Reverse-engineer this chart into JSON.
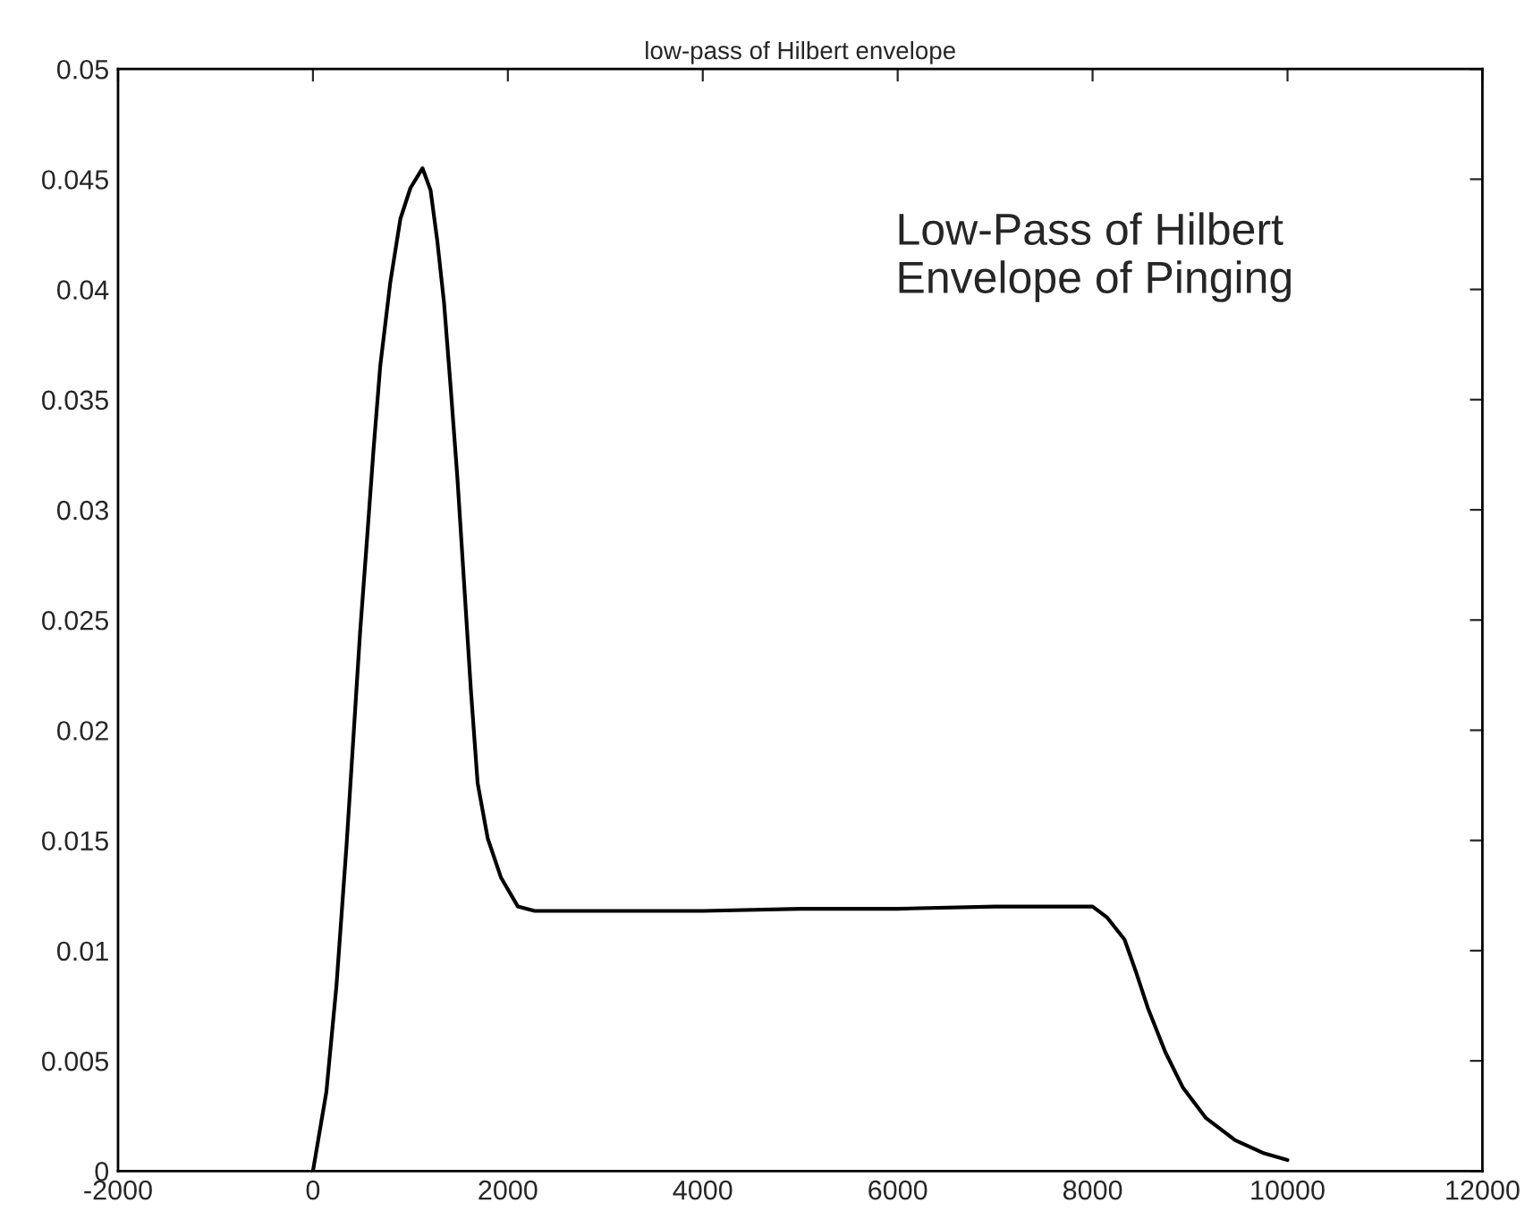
{
  "chart_data": {
    "type": "line",
    "title": "low-pass of Hilbert envelope",
    "annotations": [
      "Low-Pass of Hilbert\nEnvelope of Pinging"
    ],
    "x": [
      0,
      138,
      241,
      345,
      414,
      483,
      552,
      621,
      690,
      793,
      897,
      1000,
      1124,
      1207,
      1276,
      1345,
      1414,
      1483,
      1552,
      1621,
      1690,
      1793,
      1931,
      2103,
      2276,
      3000,
      4000,
      5000,
      6000,
      7000,
      8000,
      8150,
      8328,
      8448,
      8567,
      8746,
      8925,
      9164,
      9463,
      9761,
      10000
    ],
    "series": [
      {
        "color": "#000000",
        "values": [
          0,
          0.0036,
          0.0084,
          0.0148,
          0.0196,
          0.0244,
          0.0285,
          0.0327,
          0.0365,
          0.0403,
          0.0432,
          0.0446,
          0.0455,
          0.0445,
          0.0422,
          0.0394,
          0.0355,
          0.0314,
          0.0266,
          0.0218,
          0.0176,
          0.0151,
          0.0133,
          0.012,
          0.0118,
          0.0118,
          0.0118,
          0.0119,
          0.0119,
          0.012,
          0.012,
          0.0115,
          0.0105,
          0.009,
          0.0074,
          0.0054,
          0.0038,
          0.0024,
          0.0014,
          0.0008,
          0.0005
        ]
      }
    ],
    "xlim": [
      -2000,
      12000
    ],
    "xticks": [
      -2000,
      0,
      2000,
      4000,
      6000,
      8000,
      10000,
      12000
    ],
    "ylim": [
      0,
      0.05
    ],
    "yticks": [
      0,
      0.005,
      0.01,
      0.015,
      0.02,
      0.025,
      0.03,
      0.035,
      0.04,
      0.045,
      0.05
    ],
    "grid": false,
    "marker": "none",
    "line_style": "solid"
  }
}
